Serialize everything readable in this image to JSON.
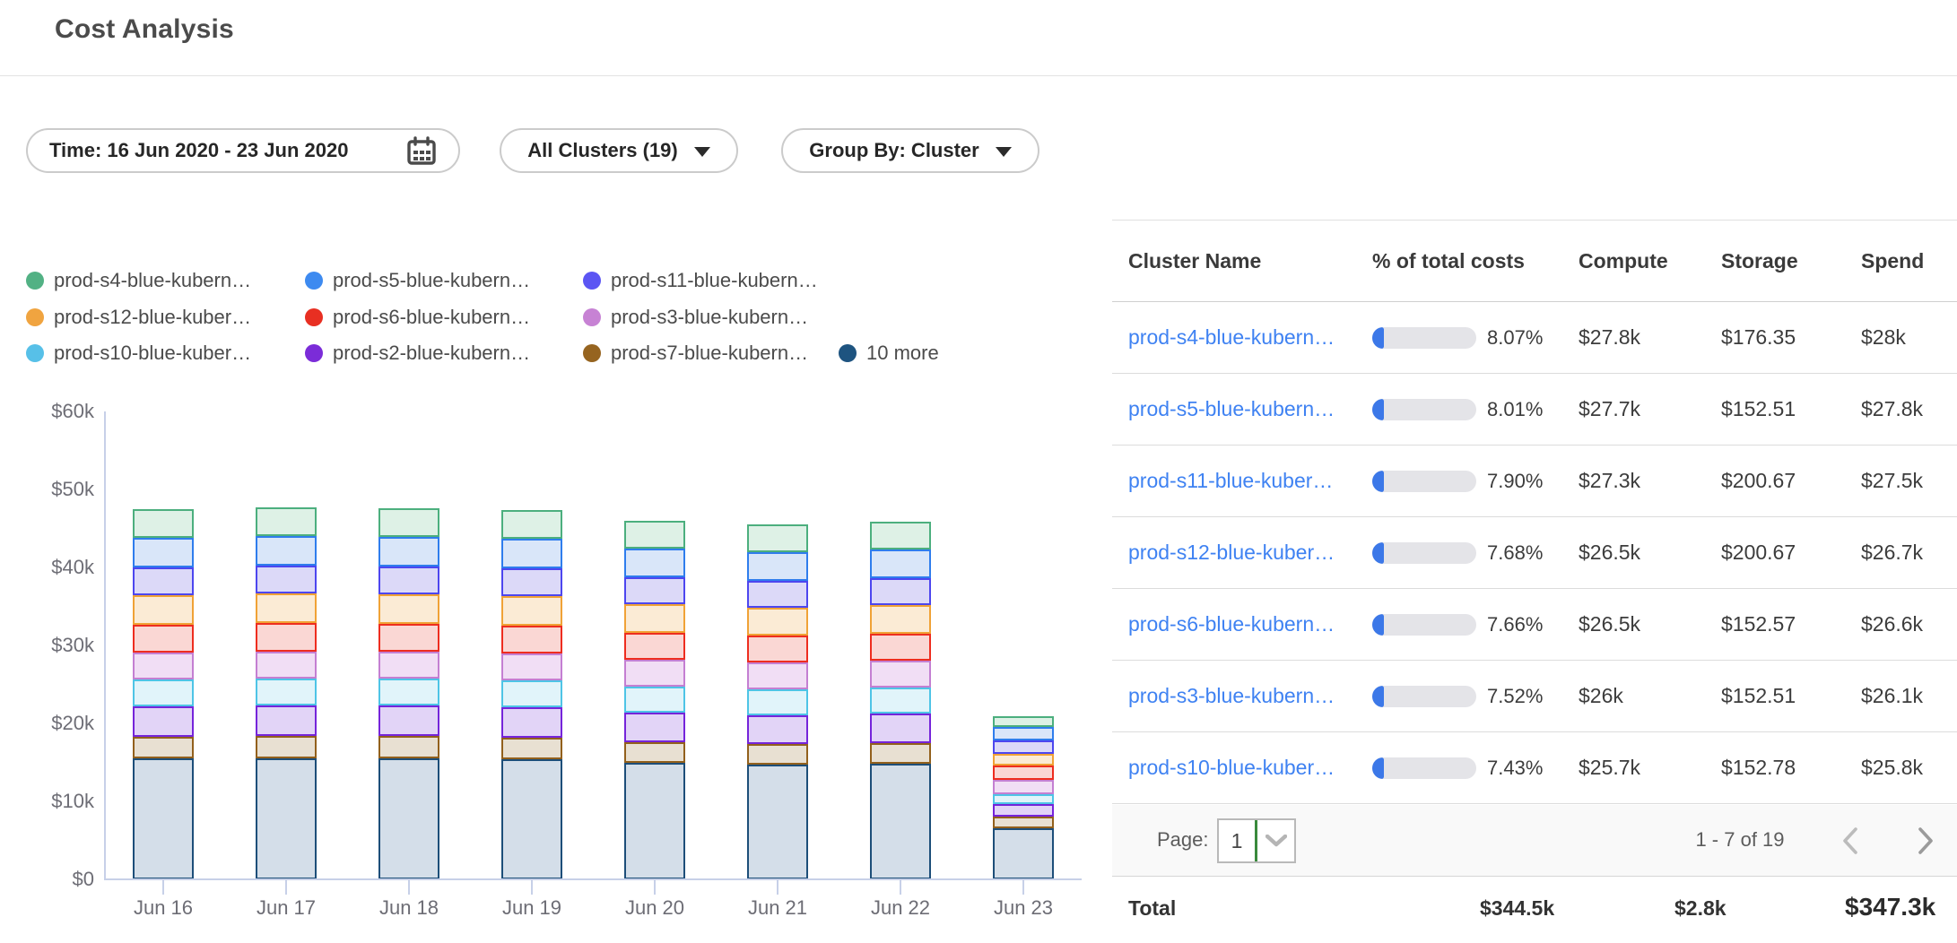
{
  "header": {
    "title": "Cost Analysis"
  },
  "filters": {
    "time": {
      "label": "Time: 16 Jun 2020 - 23 Jun 2020",
      "icon": "calendar-icon"
    },
    "clusters": {
      "label": "All Clusters (19)"
    },
    "group_by": {
      "label": "Group By: Cluster"
    }
  },
  "legend": {
    "items": [
      {
        "label": "prod-s4-blue-kubern…",
        "color": "#52b184"
      },
      {
        "label": "prod-s5-blue-kubern…",
        "color": "#3d8af0"
      },
      {
        "label": "prod-s11-blue-kubern…",
        "color": "#5b55f3"
      },
      {
        "label": "prod-s12-blue-kuber…",
        "color": "#f0a440"
      },
      {
        "label": "prod-s6-blue-kubern…",
        "color": "#e82f22"
      },
      {
        "label": "prod-s3-blue-kubern…",
        "color": "#c782d4"
      },
      {
        "label": "prod-s10-blue-kuber…",
        "color": "#57c0e8"
      },
      {
        "label": "prod-s2-blue-kubern…",
        "color": "#7b2cd8"
      },
      {
        "label": "prod-s7-blue-kubern…",
        "color": "#966420"
      },
      {
        "label": "10 more",
        "color": "#1e5480"
      }
    ]
  },
  "chart_data": {
    "type": "bar",
    "subtype": "stacked-daily-cost",
    "x": [
      "Jun 16",
      "Jun 17",
      "Jun 18",
      "Jun 19",
      "Jun 20",
      "Jun 21",
      "Jun 22",
      "Jun 23"
    ],
    "ylabel_ticks": [
      "$0",
      "$10k",
      "$20k",
      "$30k",
      "$40k",
      "$50k",
      "$60k"
    ],
    "ylim_k": [
      0,
      60
    ],
    "unit": "USD thousands per day",
    "grid": "off",
    "legend_position": "top",
    "series_bottom_to_top": [
      {
        "name": "10 more",
        "stroke": "#1d4e79",
        "fill": "#d4dee9",
        "values_k": [
          15.5,
          15.5,
          15.5,
          15.4,
          14.9,
          14.7,
          14.8,
          6.5
        ]
      },
      {
        "name": "prod-s7-blue-kubern…",
        "stroke": "#92601c",
        "fill": "#e8e0d2",
        "values_k": [
          2.8,
          2.9,
          2.9,
          2.8,
          2.7,
          2.7,
          2.7,
          1.5
        ]
      },
      {
        "name": "prod-s2-blue-kubern…",
        "stroke": "#7524da",
        "fill": "#e2d4f7",
        "values_k": [
          3.9,
          3.9,
          3.9,
          3.9,
          3.8,
          3.7,
          3.8,
          1.6
        ]
      },
      {
        "name": "prod-s10-blue-kuber…",
        "stroke": "#4ec4e6",
        "fill": "#e1f4fa",
        "values_k": [
          3.4,
          3.5,
          3.5,
          3.4,
          3.3,
          3.3,
          3.3,
          1.3
        ]
      },
      {
        "name": "prod-s3-blue-kubern…",
        "stroke": "#c47fd2",
        "fill": "#f1def5",
        "values_k": [
          3.5,
          3.5,
          3.5,
          3.5,
          3.4,
          3.4,
          3.4,
          1.8
        ]
      },
      {
        "name": "prod-s6-blue-kubern…",
        "stroke": "#ee2d1f",
        "fill": "#fad7d4",
        "values_k": [
          3.6,
          3.7,
          3.6,
          3.6,
          3.5,
          3.5,
          3.5,
          1.8
        ]
      },
      {
        "name": "prod-s12-blue-kuber…",
        "stroke": "#f0a236",
        "fill": "#fbebd5",
        "values_k": [
          3.8,
          3.8,
          3.8,
          3.8,
          3.7,
          3.6,
          3.7,
          1.5
        ]
      },
      {
        "name": "prod-s11-blue-kubern…",
        "stroke": "#4d46ef",
        "fill": "#dcd9f8",
        "values_k": [
          3.6,
          3.6,
          3.6,
          3.6,
          3.5,
          3.5,
          3.5,
          1.7
        ]
      },
      {
        "name": "prod-s5-blue-kubern…",
        "stroke": "#2f7ded",
        "fill": "#d9e6f9",
        "values_k": [
          3.8,
          3.8,
          3.8,
          3.8,
          3.7,
          3.7,
          3.7,
          1.7
        ]
      },
      {
        "name": "prod-s4-blue-kubern…",
        "stroke": "#4caf7e",
        "fill": "#def1e6",
        "values_k": [
          3.7,
          3.7,
          3.7,
          3.7,
          3.6,
          3.6,
          3.6,
          1.4
        ]
      }
    ]
  },
  "table": {
    "columns": [
      "Cluster Name",
      "% of total costs",
      "Compute",
      "Storage",
      "Spend"
    ],
    "rows": [
      {
        "name": "prod-s4-blue-kubern…",
        "pct": "8.07%",
        "pct_value": 8.07,
        "compute": "$27.8k",
        "storage": "$176.35",
        "spend": "$28k"
      },
      {
        "name": "prod-s5-blue-kubern…",
        "pct": "8.01%",
        "pct_value": 8.01,
        "compute": "$27.7k",
        "storage": "$152.51",
        "spend": "$27.8k"
      },
      {
        "name": "prod-s11-blue-kuber…",
        "pct": "7.90%",
        "pct_value": 7.9,
        "compute": "$27.3k",
        "storage": "$200.67",
        "spend": "$27.5k"
      },
      {
        "name": "prod-s12-blue-kuber…",
        "pct": "7.68%",
        "pct_value": 7.68,
        "compute": "$26.5k",
        "storage": "$200.67",
        "spend": "$26.7k"
      },
      {
        "name": "prod-s6-blue-kubern…",
        "pct": "7.66%",
        "pct_value": 7.66,
        "compute": "$26.5k",
        "storage": "$152.57",
        "spend": "$26.6k"
      },
      {
        "name": "prod-s3-blue-kubern…",
        "pct": "7.52%",
        "pct_value": 7.52,
        "compute": "$26k",
        "storage": "$152.51",
        "spend": "$26.1k"
      },
      {
        "name": "prod-s10-blue-kuber…",
        "pct": "7.43%",
        "pct_value": 7.43,
        "compute": "$25.7k",
        "storage": "$152.78",
        "spend": "$25.8k"
      }
    ],
    "pagination": {
      "page_label": "Page:",
      "page": "1",
      "range": "1 - 7 of 19"
    },
    "total": {
      "label": "Total",
      "compute": "$344.5k",
      "storage": "$2.8k",
      "spend": "$347.3k"
    }
  },
  "colors": {
    "link_blue": "#3f82f2",
    "progress_fill": "#3c78e8",
    "progress_track": "#e4e4e8",
    "axis": "#c7d0e8",
    "select_focus_green": "#3a8a3c"
  }
}
